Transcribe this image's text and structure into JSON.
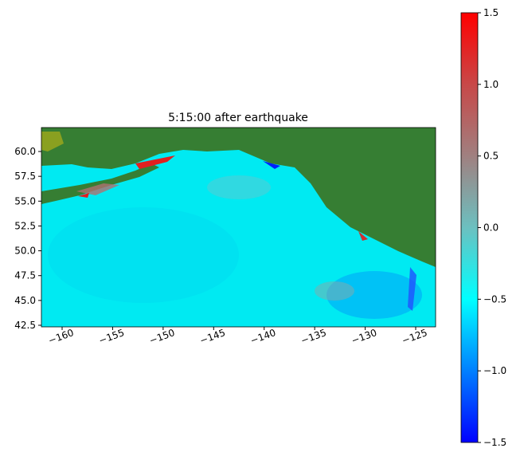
{
  "chart_data": {
    "type": "heatmap",
    "title": "5:15:00 after earthquake",
    "xlim": [
      -162.05,
      -123.03
    ],
    "ylim": [
      42.34,
      62.41
    ],
    "xticks": [
      {
        "value": -160,
        "label": "−160"
      },
      {
        "value": -155,
        "label": "−155"
      },
      {
        "value": -150,
        "label": "−150"
      },
      {
        "value": -145,
        "label": "−145"
      },
      {
        "value": -140,
        "label": "−140"
      },
      {
        "value": -135,
        "label": "−135"
      },
      {
        "value": -130,
        "label": "−130"
      },
      {
        "value": -125,
        "label": "−125"
      }
    ],
    "yticks": [
      42.5,
      {
        "value": 45,
        "label": "45.0"
      },
      47.5,
      {
        "value": 50,
        "label": "50.0"
      },
      52.5,
      {
        "value": 55,
        "label": "55.0"
      },
      57.5,
      {
        "value": 60,
        "label": "60.0"
      }
    ],
    "colorbar": {
      "lim": [
        -1.5,
        1.5
      ],
      "ticks": [
        {
          "value": -1.5,
          "label": "−1.5"
        },
        {
          "value": -1,
          "label": "−1.0"
        },
        {
          "value": -0.5,
          "label": "−0.5"
        },
        {
          "value": 0,
          "label": "0.0"
        },
        0.5,
        {
          "value": 1,
          "label": "1.0"
        },
        1.5
      ],
      "colormap": [
        "#0000ff",
        "#0080ff",
        "#00ffff",
        "#6cc0c0",
        "#a08080",
        "#c84848",
        "#ff0000"
      ]
    }
  }
}
